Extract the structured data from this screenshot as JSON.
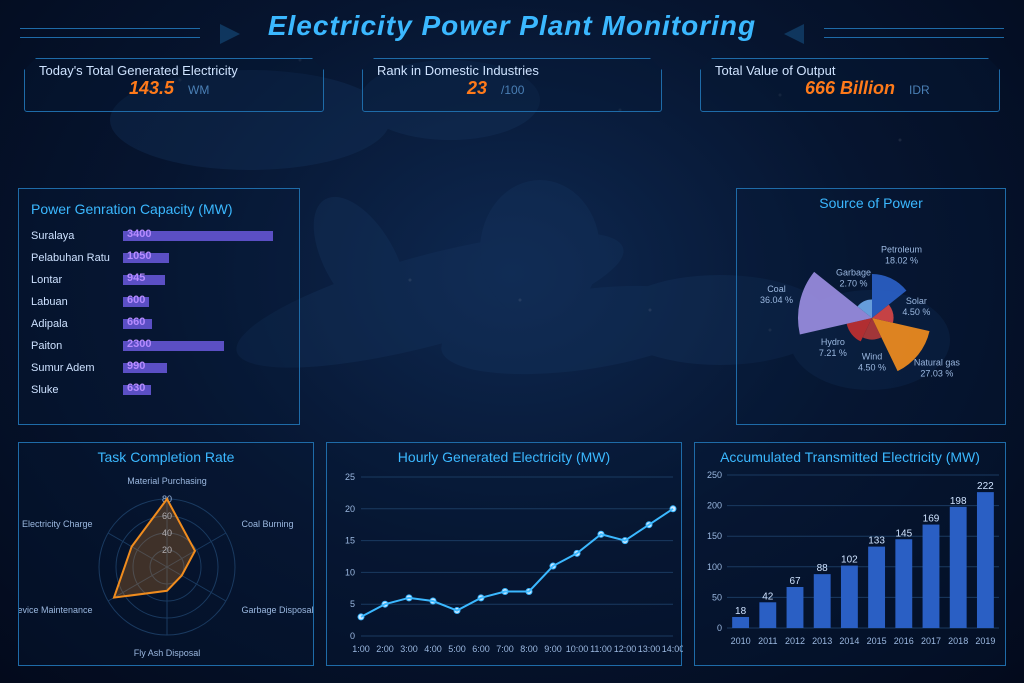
{
  "title": "Electricity Power Plant Monitoring",
  "kpis": [
    {
      "label": "Today's Total Generated Electricity",
      "value": "143.5",
      "unit": "WM"
    },
    {
      "label": "Rank in Domestic Industries",
      "value": "23",
      "unit": "/100"
    },
    {
      "label": "Total Value of Output",
      "value": "666 Billion",
      "unit": "IDR"
    }
  ],
  "capacity": {
    "title": "Power Genration Capacity (MW)",
    "max": 3400,
    "bar_color": "#5b4fc4",
    "rows": [
      {
        "name": "Suralaya",
        "value": 3400
      },
      {
        "name": "Pelabuhan Ratu",
        "value": 1050
      },
      {
        "name": "Lontar",
        "value": 945
      },
      {
        "name": "Labuan",
        "value": 600
      },
      {
        "name": "Adipala",
        "value": 660
      },
      {
        "name": "Paiton",
        "value": 2300
      },
      {
        "name": "Sumur Adem",
        "value": 990
      },
      {
        "name": "Sluke",
        "value": 630
      }
    ]
  },
  "source": {
    "title": "Source of Power",
    "slices": [
      {
        "label": "Petroleum",
        "pct": 18.02,
        "color": "#2a5fc4"
      },
      {
        "label": "Solar",
        "pct": 4.5,
        "color": "#d64545"
      },
      {
        "label": "Natural gas",
        "pct": 27.03,
        "color": "#f08c1e"
      },
      {
        "label": "Wind",
        "pct": 4.5,
        "color": "#b03838"
      },
      {
        "label": "Hydro",
        "pct": 7.21,
        "color": "#c03030"
      },
      {
        "label": "Coal",
        "pct": 36.04,
        "color": "#9a8de0"
      },
      {
        "label": "Garbage",
        "pct": 2.7,
        "color": "#6fa8e8"
      }
    ]
  },
  "taskrate": {
    "title": "Task Completion Rate",
    "rings": [
      20,
      40,
      60,
      80
    ],
    "axes": [
      "Material Purchasing",
      "Coal Burning",
      "Garbage Disposal",
      "Fly Ash Disposal",
      "Device Maintenance",
      "Electricity Charge"
    ],
    "values": [
      80,
      38,
      20,
      28,
      72,
      48
    ],
    "stroke": "#f08c1e",
    "fill": "rgba(240,140,30,0.25)"
  },
  "hourly": {
    "title": "Hourly Generated Electricity (MW)",
    "x": [
      "1:00",
      "2:00",
      "3:00",
      "4:00",
      "5:00",
      "6:00",
      "7:00",
      "8:00",
      "9:00",
      "10:00",
      "11:00",
      "12:00",
      "13:00",
      "14:00"
    ],
    "y": [
      3,
      5,
      6,
      5.5,
      4,
      6,
      7,
      7,
      11,
      13,
      16,
      15,
      17.5,
      20
    ],
    "ylim": [
      0,
      25
    ],
    "ytick": 5,
    "line_color": "#3bb8ff",
    "marker_color": "#cfe8ff"
  },
  "accum": {
    "title": "Accumulated Transmitted Electricity (MW)",
    "x": [
      "2010",
      "2011",
      "2012",
      "2013",
      "2014",
      "2015",
      "2016",
      "2017",
      "2018",
      "2019"
    ],
    "y": [
      18,
      42,
      67,
      88,
      102,
      133,
      145,
      169,
      198,
      222
    ],
    "ylim": [
      0,
      250
    ],
    "ytick": 50,
    "bar_color": "#2a5fc4"
  },
  "colors": {
    "panel_border": "#1e6ba8",
    "accent": "#3bb8ff",
    "value": "#ff7a1a"
  }
}
